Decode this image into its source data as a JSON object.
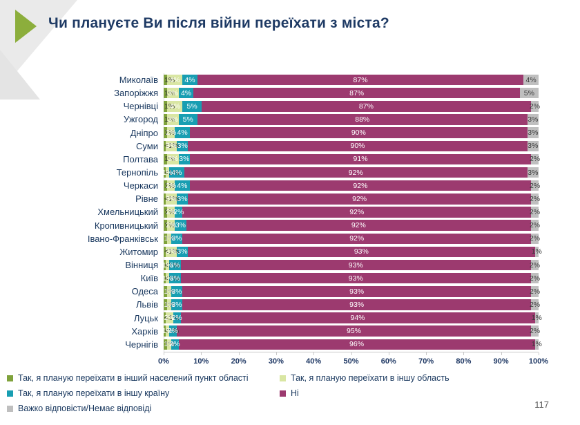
{
  "title": "Чи плануєте Ви після війни переїхати з міста?",
  "page_number": "117",
  "colors": {
    "accent_arrow_green": "#8CAE3C",
    "title_text": "#1E3A64",
    "axis_text": "#1F3864",
    "category_text": "#17365D",
    "corner_gray": "#EAEAEA"
  },
  "chart_data": {
    "type": "bar",
    "orientation": "horizontal",
    "stacked": true,
    "title": "Чи плануєте Ви після війни переїхати з міста?",
    "xlim": [
      0,
      100
    ],
    "x_axis_ticks": [
      "0%",
      "10%",
      "20%",
      "30%",
      "40%",
      "50%",
      "60%",
      "70%",
      "80%",
      "90%",
      "100%"
    ],
    "legend_position": "bottom",
    "series": [
      {
        "name": "Так, я планую переїхати в інший населений пункт області",
        "color": "#7FA23B",
        "label_text_color": "#3A3A3A"
      },
      {
        "name": "Так, я планую переїхати в іншу область",
        "color": "#D9E6A3",
        "label_text_color": "#FFFFFF"
      },
      {
        "name": "Так, я планую переїхати в іншу країну",
        "color": "#189EB2",
        "label_text_color": "#FFFFFF"
      },
      {
        "name": "Ні",
        "color": "#9C3A6F",
        "label_text_color": "#FFFFFF"
      },
      {
        "name": "Важко відповісти/Немає відповіді",
        "color": "#BFBFBF",
        "label_text_color": "#3A3A3A"
      }
    ],
    "categories": [
      "Миколаїв",
      "Запоріжжя",
      "Чернівці",
      "Ужгород",
      "Дніпро",
      "Суми",
      "Полтава",
      "Тернопіль",
      "Черкаси",
      "Рівне",
      "Хмельницький",
      "Кропивницький",
      "Івано-Франківськ",
      "Житомир",
      "Вінниця",
      "Київ",
      "Одеса",
      "Львів",
      "Луцьк",
      "Харків",
      "Чернігів"
    ],
    "rows": [
      {
        "city": "Миколаїв",
        "values": [
          1,
          4,
          4,
          87,
          4
        ],
        "labels": [
          "1%",
          "4%",
          "4%",
          "87%",
          "4%"
        ]
      },
      {
        "city": "Запоріжжя",
        "values": [
          1,
          3,
          4,
          87,
          5
        ],
        "labels": [
          "1%",
          "3%",
          "4%",
          "87%",
          "5%"
        ]
      },
      {
        "city": "Чернівці",
        "values": [
          1,
          4,
          5,
          87,
          2
        ],
        "labels": [
          "1%",
          "4%",
          "5%",
          "87%",
          "2%"
        ]
      },
      {
        "city": "Ужгород",
        "values": [
          1,
          3,
          5,
          88,
          3
        ],
        "labels": [
          "1%",
          "3%",
          "5%",
          "88%",
          "3%"
        ]
      },
      {
        "city": "Дніпро",
        "values": [
          1,
          2,
          4,
          90,
          3
        ],
        "labels": [
          "1%",
          "2%",
          "4%",
          "90%",
          "3%"
        ]
      },
      {
        "city": "Суми",
        "values": [
          0.5,
          3,
          3,
          90,
          3
        ],
        "labels": [
          "<1%",
          "3%",
          "3%",
          "90%",
          "3%"
        ]
      },
      {
        "city": "Полтава",
        "values": [
          1,
          3,
          3,
          91,
          2
        ],
        "labels": [
          "1%",
          "3%",
          "3%",
          "91%",
          "2%"
        ]
      },
      {
        "city": "Тернопіль",
        "values": [
          0.5,
          1,
          4,
          92,
          3
        ],
        "labels": [
          "<1%",
          "1%",
          "4%",
          "92%",
          "3%"
        ]
      },
      {
        "city": "Черкаси",
        "values": [
          1,
          2,
          4,
          92,
          2
        ],
        "labels": [
          "1%",
          "2%",
          "4%",
          "92%",
          "2%"
        ]
      },
      {
        "city": "Рівне",
        "values": [
          0.5,
          3,
          3,
          92,
          2
        ],
        "labels": [
          "<1%",
          "3%",
          "3%",
          "92%",
          "2%"
        ]
      },
      {
        "city": "Хмельницький",
        "values": [
          1,
          2,
          2,
          92,
          2
        ],
        "labels": [
          "1%",
          "2%",
          "2%",
          "92%",
          "2%"
        ]
      },
      {
        "city": "Кропивницький",
        "values": [
          1,
          2,
          3,
          92,
          2
        ],
        "labels": [
          "1%",
          "2%",
          "3%",
          "92%",
          "2%"
        ]
      },
      {
        "city": "Івано-Франківськ",
        "values": [
          1,
          1,
          3,
          92,
          2
        ],
        "labels": [
          "1%",
          "1%",
          "3%",
          "92%",
          "2%"
        ]
      },
      {
        "city": "Житомир",
        "values": [
          0.5,
          3,
          3,
          93,
          1
        ],
        "labels": [
          "<1%",
          "3%",
          "3%",
          "93%",
          "1%"
        ]
      },
      {
        "city": "Вінниця",
        "values": [
          0.5,
          1,
          3,
          93,
          2
        ],
        "labels": [
          "<1%",
          "1%",
          "3%",
          "93%",
          "2%"
        ]
      },
      {
        "city": "Київ",
        "values": [
          0.5,
          1,
          3,
          93,
          2
        ],
        "labels": [
          "<1%",
          "1%",
          "3%",
          "93%",
          "2%"
        ]
      },
      {
        "city": "Одеса",
        "values": [
          1,
          1,
          3,
          93,
          2
        ],
        "labels": [
          "1%",
          "1%",
          "3%",
          "93%",
          "2%"
        ]
      },
      {
        "city": "Львів",
        "values": [
          1,
          1,
          3,
          93,
          2
        ],
        "labels": [
          "1%",
          "1%",
          "3%",
          "93%",
          "2%"
        ]
      },
      {
        "city": "Луцьк",
        "values": [
          0.5,
          2,
          2,
          94,
          1
        ],
        "labels": [
          "<1%",
          "2%",
          "2%",
          "94%",
          "1%"
        ]
      },
      {
        "city": "Харків",
        "values": [
          0.5,
          1,
          2,
          95,
          2
        ],
        "labels": [
          "<1%",
          "1%",
          "2%",
          "95%",
          "2%"
        ]
      },
      {
        "city": "Чернігів",
        "values": [
          1,
          1,
          2,
          96,
          1
        ],
        "labels": [
          "1%",
          "1%",
          "2%",
          "96%",
          "1%"
        ]
      }
    ]
  }
}
